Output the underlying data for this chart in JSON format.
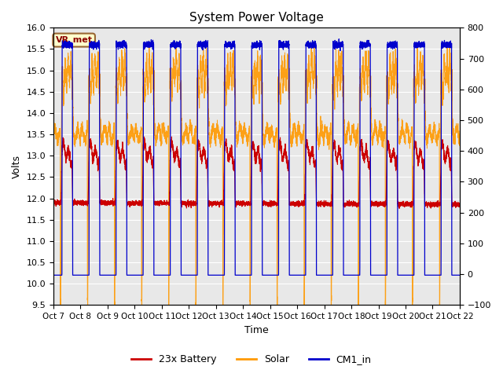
{
  "title": "System Power Voltage",
  "xlabel": "Time",
  "ylabel_left": "Volts",
  "ylim_left": [
    9.5,
    16.0
  ],
  "ylim_right": [
    -100,
    800
  ],
  "yticks_left": [
    9.5,
    10.0,
    10.5,
    11.0,
    11.5,
    12.0,
    12.5,
    13.0,
    13.5,
    14.0,
    14.5,
    15.0,
    15.5,
    16.0
  ],
  "yticks_right": [
    -100,
    0,
    100,
    200,
    300,
    400,
    500,
    600,
    700,
    800
  ],
  "x_tick_labels": [
    "Oct 7",
    "Oct 8",
    "Oct 9",
    "Oct 10",
    "Oct 11",
    "Oct 12",
    "Oct 13",
    "Oct 14",
    "Oct 15",
    "Oct 16",
    "Oct 17",
    "Oct 18",
    "Oct 19",
    "Oct 20",
    "Oct 21",
    "Oct 22"
  ],
  "vr_met_label": "VR_met",
  "legend_entries": [
    "23x Battery",
    "Solar",
    "CM1_in"
  ],
  "legend_colors": [
    "#cc0000",
    "#ff9900",
    "#0000cc"
  ],
  "battery_color": "#cc0000",
  "solar_color": "#ff9900",
  "cm1_color": "#0000cc",
  "background_color": "#ffffff",
  "plot_bg_color": "#e8e8e8",
  "grid_color": "#ffffff"
}
